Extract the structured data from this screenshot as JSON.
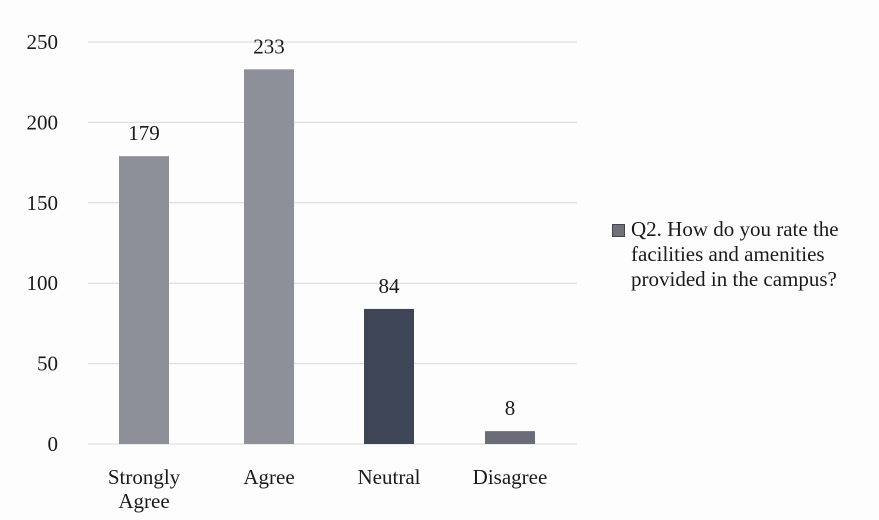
{
  "chart_data": {
    "type": "bar",
    "title": "",
    "xlabel": "",
    "ylabel": "",
    "categories": [
      "Strongly Agree",
      "Agree",
      "Neutral",
      "Disagree"
    ],
    "category_lines": [
      [
        "Strongly",
        "Agree"
      ],
      [
        "Agree"
      ],
      [
        "Neutral"
      ],
      [
        "Disagree"
      ]
    ],
    "series": [
      {
        "name": "Q2. How do you rate the facilities and amenities provided in the campus?",
        "values": [
          179,
          233,
          84,
          8
        ],
        "colors": [
          "#8e9099",
          "#8e9099",
          "#3e4556",
          "#6a6c78"
        ]
      }
    ],
    "data_labels": [
      "179",
      "233",
      "84",
      "8"
    ],
    "ylim": [
      0,
      250
    ],
    "yticks": [
      0,
      50,
      100,
      150,
      200,
      250
    ],
    "grid": true,
    "legend_position": "right"
  },
  "legend": {
    "label": "Q2. How do you rate the facilities and amenities provided in the campus?",
    "color": "#6f7079"
  }
}
